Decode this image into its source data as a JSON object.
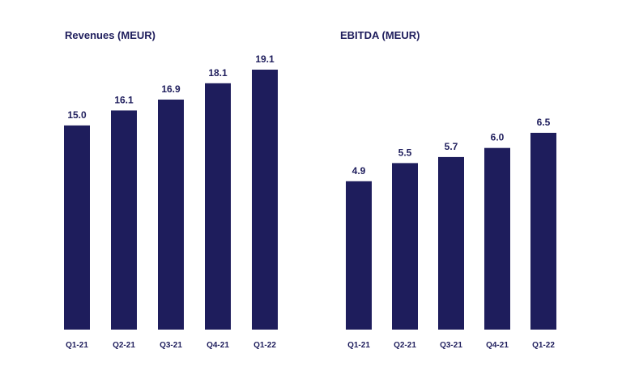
{
  "colors": {
    "bar": "#1e1d5c",
    "text": "#1e1d5c",
    "background": "#ffffff"
  },
  "chart_data": [
    {
      "type": "bar",
      "title": "Revenues (MEUR)",
      "categories": [
        "Q1-21",
        "Q2-21",
        "Q3-21",
        "Q4-21",
        "Q1-22"
      ],
      "values": [
        15.0,
        16.1,
        16.9,
        18.1,
        19.1
      ],
      "value_labels": [
        "15.0",
        "16.1",
        "16.9",
        "18.1",
        "19.1"
      ],
      "xlabel": "",
      "ylabel": "",
      "grid": false,
      "legend": "none"
    },
    {
      "type": "bar",
      "title": "EBITDA (MEUR)",
      "categories": [
        "Q1-21",
        "Q2-21",
        "Q3-21",
        "Q4-21",
        "Q1-22"
      ],
      "values": [
        4.9,
        5.5,
        5.7,
        6.0,
        6.5
      ],
      "value_labels": [
        "4.9",
        "5.5",
        "5.7",
        "6.0",
        "6.5"
      ],
      "xlabel": "",
      "ylabel": "",
      "grid": false,
      "legend": "none"
    }
  ]
}
